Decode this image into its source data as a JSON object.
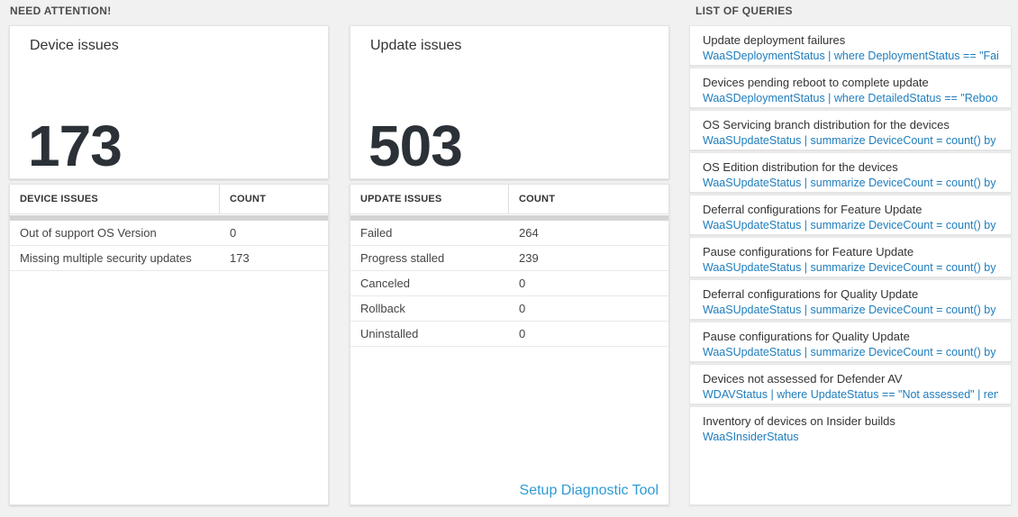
{
  "need_attention": {
    "header": "NEED ATTENTION!",
    "device_tile": {
      "title": "Device issues",
      "count": "173"
    },
    "update_tile": {
      "title": "Update issues",
      "count": "503"
    },
    "device_table": {
      "headers": [
        "DEVICE ISSUES",
        "COUNT"
      ],
      "rows": [
        [
          "Out of support OS Version",
          "0"
        ],
        [
          "Missing multiple security updates",
          "173"
        ]
      ]
    },
    "update_table": {
      "headers": [
        "UPDATE ISSUES",
        "COUNT"
      ],
      "rows": [
        [
          "Failed",
          "264"
        ],
        [
          "Progress stalled",
          "239"
        ],
        [
          "Canceled",
          "0"
        ],
        [
          "Rollback",
          "0"
        ],
        [
          "Uninstalled",
          "0"
        ]
      ],
      "footer_link": "Setup Diagnostic Tool"
    }
  },
  "queries": {
    "header": "LIST OF QUERIES",
    "items": [
      {
        "title": "Update deployment failures",
        "query": "WaaSDeploymentStatus | where DeploymentStatus == \"Failed\" |..."
      },
      {
        "title": "Devices pending reboot to complete update",
        "query": "WaaSDeploymentStatus | where DetailedStatus == \"Reboot pend..."
      },
      {
        "title": "OS Servicing branch distribution for the devices",
        "query": "WaaSUpdateStatus | summarize DeviceCount = count() by OSSer..."
      },
      {
        "title": "OS Edition distribution for the devices",
        "query": "WaaSUpdateStatus | summarize DeviceCount = count() by OSEdit..."
      },
      {
        "title": "Deferral configurations for Feature Update",
        "query": "WaaSUpdateStatus | summarize DeviceCount = count() by Featur..."
      },
      {
        "title": "Pause configurations for Feature Update",
        "query": "WaaSUpdateStatus | summarize DeviceCount = count() by Featur..."
      },
      {
        "title": "Deferral configurations for Quality Update",
        "query": "WaaSUpdateStatus | summarize DeviceCount = count() by Qualit..."
      },
      {
        "title": "Pause configurations for Quality Update",
        "query": "WaaSUpdateStatus | summarize DeviceCount = count() by Qualit..."
      },
      {
        "title": "Devices not assessed for Defender AV",
        "query": "WDAVStatus | where UpdateStatus == \"Not assessed\" | render ta..."
      },
      {
        "title": "Inventory of devices on Insider builds",
        "query": "WaaSInsiderStatus"
      }
    ]
  },
  "colors": {
    "background": "#f1f1f1",
    "query_link_blue": "#1e7dbd",
    "diagnostic_link_blue": "#2e9bd5",
    "metric_number": "#2b3137",
    "table_gray_bar": "#d3d3d3"
  }
}
